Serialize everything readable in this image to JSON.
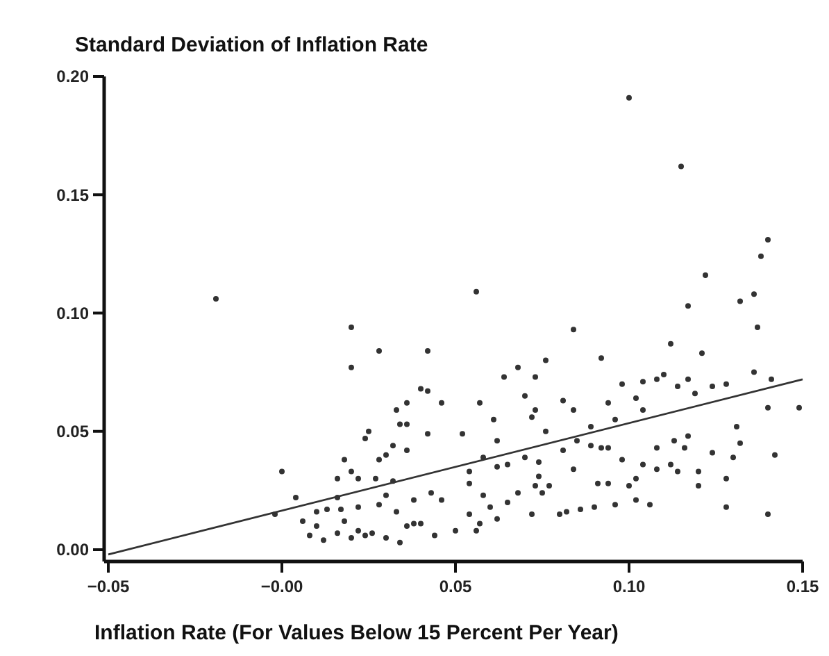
{
  "chart_data": {
    "type": "scatter",
    "xlabel": "Inflation Rate (For Values Below 15 Percent Per Year)",
    "ylabel": "Standard Deviation of Inflation Rate",
    "xlim": [
      -0.05,
      0.15
    ],
    "ylim": [
      -0.005,
      0.2
    ],
    "xticks": [
      {
        "value": -0.05,
        "label": "−0.05"
      },
      {
        "value": 0,
        "label": "−0.00"
      },
      {
        "value": 0.05,
        "label": "0.05"
      },
      {
        "value": 0.1,
        "label": "0.10"
      },
      {
        "value": 0.15,
        "label": "0.15"
      }
    ],
    "yticks": [
      {
        "value": 0,
        "label": "0.00"
      },
      {
        "value": 0.05,
        "label": "0.05"
      },
      {
        "value": 0.1,
        "label": "0.10"
      },
      {
        "value": 0.15,
        "label": "0.15"
      },
      {
        "value": 0.2,
        "label": "0.20"
      }
    ],
    "grid": false,
    "marker": "circle",
    "series": [
      {
        "color": "#333333",
        "x": [
          0.1,
          0.115,
          0.042,
          0.056,
          0.042,
          0.046,
          0.042,
          0.052,
          0.057,
          0.061,
          0.062,
          0.064,
          0.068,
          0.073,
          0.076,
          0.07,
          0.073,
          0.072,
          0.076,
          0.081,
          0.084,
          0.084,
          0.092,
          0.089,
          0.094,
          0.096,
          0.098,
          0.102,
          0.104,
          0.104,
          0.108,
          0.11,
          0.112,
          0.114,
          0.117,
          0.117,
          0.121,
          0.122,
          0.119,
          0.124,
          0.128,
          0.132,
          0.136,
          0.137,
          0.138,
          0.14,
          0.136,
          0.141,
          0.14,
          0.149,
          0.142,
          0.14,
          0.128,
          0.131,
          0.132,
          0.13,
          0.128,
          0.124,
          0.12,
          0.12,
          0.117,
          0.116,
          0.113,
          0.112,
          0.114,
          0.108,
          0.108,
          0.104,
          0.102,
          0.102,
          0.106,
          0.098,
          0.1,
          0.096,
          0.094,
          0.091,
          0.09,
          0.086,
          0.082,
          0.08,
          0.084,
          0.081,
          0.085,
          0.089,
          0.092,
          0.094,
          0.077,
          0.075,
          0.073,
          0.074,
          0.072,
          0.068,
          0.065,
          0.062,
          0.06,
          0.058,
          0.057,
          0.056,
          0.054,
          0.05,
          0.054,
          0.054,
          0.058,
          0.062,
          0.065,
          0.07,
          0.074,
          0.044,
          0.046,
          0.043,
          0.04,
          -0.019,
          0.02,
          0.02,
          0.028,
          0.036,
          0.033,
          0.034,
          0.036,
          0.025,
          0.024,
          0.032,
          0.036,
          0.03,
          0.028,
          0.018,
          0.04,
          0.016,
          0.02,
          0.022,
          0.027,
          0.032,
          0.0,
          0.004,
          -0.002,
          0.006,
          0.01,
          0.008,
          0.012,
          0.016,
          0.018,
          0.02,
          0.022,
          0.024,
          0.026,
          0.03,
          0.034,
          0.036,
          0.013,
          0.017,
          0.022,
          0.028,
          0.033,
          0.038,
          0.038,
          0.03,
          0.016,
          0.01
        ],
        "values": [
          0.191,
          0.162,
          0.084,
          0.109,
          0.067,
          0.062,
          0.049,
          0.049,
          0.062,
          0.055,
          0.046,
          0.073,
          0.077,
          0.073,
          0.08,
          0.065,
          0.059,
          0.056,
          0.05,
          0.063,
          0.059,
          0.093,
          0.081,
          0.052,
          0.062,
          0.055,
          0.07,
          0.064,
          0.071,
          0.059,
          0.072,
          0.074,
          0.087,
          0.069,
          0.072,
          0.103,
          0.083,
          0.116,
          0.066,
          0.069,
          0.07,
          0.105,
          0.108,
          0.094,
          0.124,
          0.131,
          0.075,
          0.072,
          0.06,
          0.06,
          0.04,
          0.015,
          0.018,
          0.052,
          0.045,
          0.039,
          0.03,
          0.041,
          0.027,
          0.033,
          0.048,
          0.043,
          0.046,
          0.036,
          0.033,
          0.034,
          0.043,
          0.036,
          0.03,
          0.021,
          0.019,
          0.038,
          0.027,
          0.019,
          0.028,
          0.028,
          0.018,
          0.017,
          0.016,
          0.015,
          0.034,
          0.042,
          0.046,
          0.044,
          0.043,
          0.043,
          0.027,
          0.024,
          0.027,
          0.031,
          0.015,
          0.024,
          0.02,
          0.013,
          0.018,
          0.023,
          0.011,
          0.008,
          0.015,
          0.008,
          0.028,
          0.033,
          0.039,
          0.035,
          0.036,
          0.039,
          0.037,
          0.006,
          0.021,
          0.024,
          0.011,
          0.106,
          0.094,
          0.077,
          0.084,
          0.062,
          0.059,
          0.053,
          0.053,
          0.05,
          0.047,
          0.044,
          0.042,
          0.04,
          0.038,
          0.038,
          0.068,
          0.03,
          0.033,
          0.03,
          0.03,
          0.029,
          0.033,
          0.022,
          0.015,
          0.012,
          0.01,
          0.006,
          0.004,
          0.007,
          0.012,
          0.005,
          0.008,
          0.006,
          0.007,
          0.005,
          0.003,
          0.01,
          0.017,
          0.017,
          0.018,
          0.019,
          0.016,
          0.011,
          0.021,
          0.023,
          0.022,
          0.016
        ]
      },
      {
        "type": "line",
        "marker": "none",
        "color": "#333333",
        "x": [
          -0.05,
          0.15
        ],
        "values": [
          -0.002,
          0.072
        ]
      }
    ]
  }
}
